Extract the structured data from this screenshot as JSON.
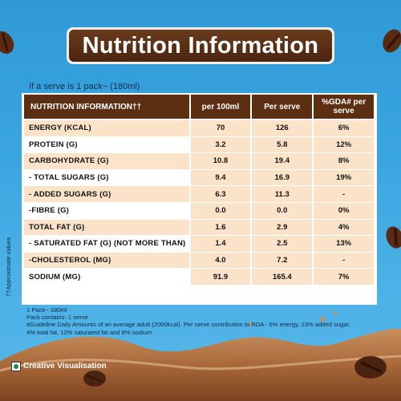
{
  "title": "Nutrition Information",
  "serve_note": "If a serve is 1 pack~ (180ml)",
  "table": {
    "headers": [
      "NUTRITION INFORMATION††",
      "per 100ml",
      "Per serve",
      "%GDA# per serve"
    ],
    "rows": [
      {
        "label": "ENERGY (KCAL)",
        "per100": "70",
        "serve": "126",
        "gda": "6%"
      },
      {
        "label": "PROTEIN (G)",
        "per100": "3.2",
        "serve": "5.8",
        "gda": "12%"
      },
      {
        "label": "CARBOHYDRATE (G)",
        "per100": "10.8",
        "serve": "19.4",
        "gda": "8%"
      },
      {
        "label": "- TOTAL SUGARS (G)",
        "per100": "9.4",
        "serve": "16.9",
        "gda": "19%"
      },
      {
        "label": "- ADDED SUGARS (G)",
        "per100": "6.3",
        "serve": "11.3",
        "gda": "-"
      },
      {
        "label": "-FIBRE (G)",
        "per100": "0.0",
        "serve": "0.0",
        "gda": "0%"
      },
      {
        "label": "TOTAL FAT (G)",
        "per100": "1.6",
        "serve": "2.9",
        "gda": "4%"
      },
      {
        "label": "- SATURATED FAT (G) (NOT MORE THAN)",
        "per100": "1.4",
        "serve": "2.5",
        "gda": "13%"
      },
      {
        "label": "-CHOLESTEROL (MG)",
        "per100": "4.0",
        "serve": "7.2",
        "gda": "-"
      },
      {
        "label": "SODIUM (MG)",
        "per100": "91.9",
        "serve": "165.4",
        "gda": "7%"
      }
    ]
  },
  "side_note": "††Approximate values",
  "notes": [
    "1 Pack~ 180ml",
    "Pack contains- 1 serve",
    "#Guideline Daily Amounts of an average adult (2000kcal). Per serve contribution to RDA - 6% energy, 23% added sugar,",
    "4% total fat, 12% saturated fat and 8% sodium."
  ],
  "footer_label": "Creative Visualisation",
  "colors": {
    "header": "#5c2f12",
    "row_tint": "#fbe3c9",
    "background": "#3aa6e0"
  }
}
